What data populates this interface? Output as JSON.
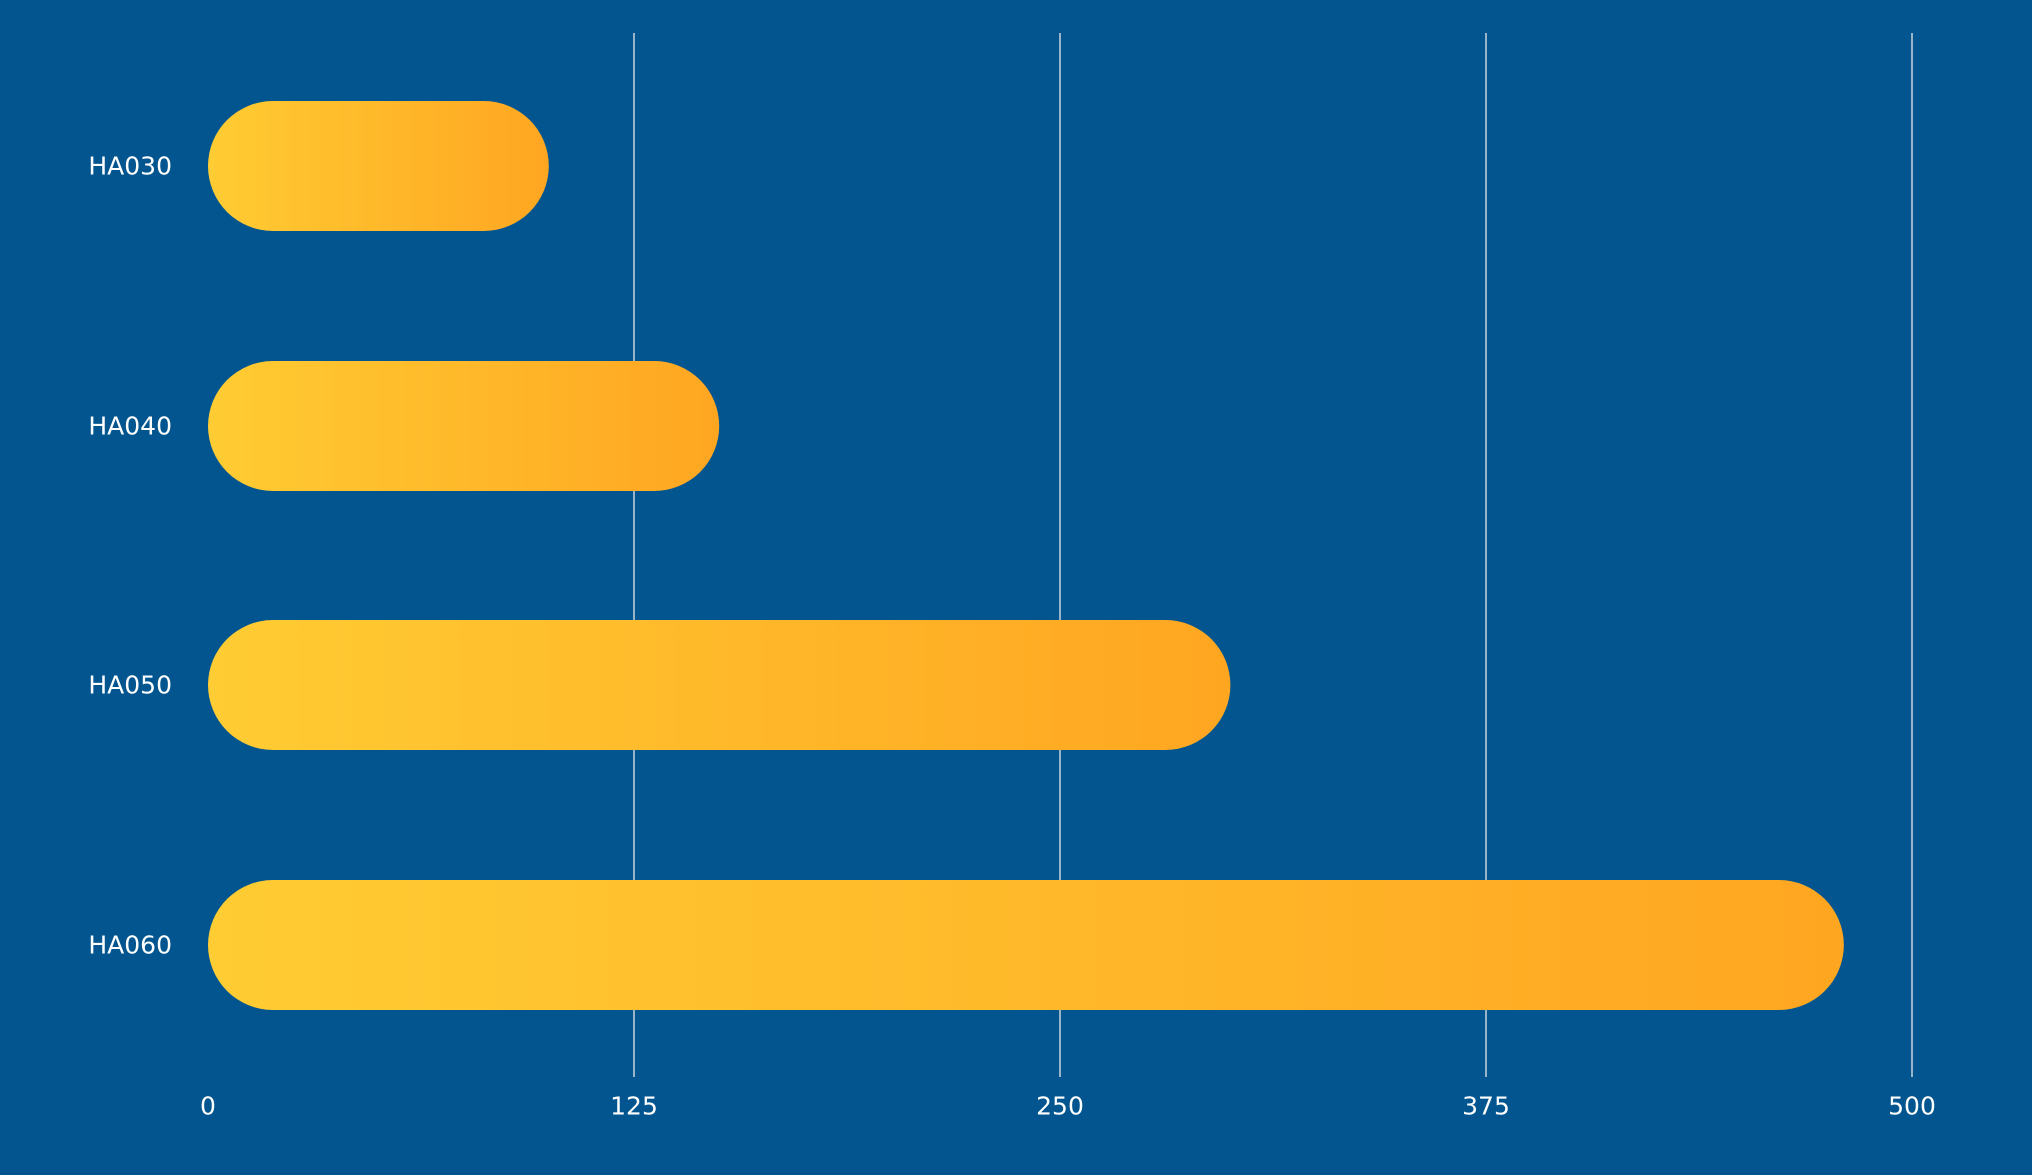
{
  "chart_data": {
    "type": "bar",
    "orientation": "horizontal",
    "categories": [
      "HA030",
      "HA040",
      "HA050",
      "HA060"
    ],
    "values": [
      100,
      150,
      300,
      480
    ],
    "xlim": [
      0,
      500
    ],
    "xticks": [
      "0",
      "125",
      "250",
      "375",
      "500"
    ],
    "xtick_values": [
      0,
      125,
      250,
      375,
      500
    ],
    "grid": true,
    "title": "",
    "xlabel": "",
    "ylabel": ""
  },
  "colors": {
    "background": "#02558f",
    "bar_gradient_start": "#ffcc33",
    "bar_gradient_end": "#ffa621",
    "grid": "#c9d3dc",
    "text": "#ffffff"
  }
}
